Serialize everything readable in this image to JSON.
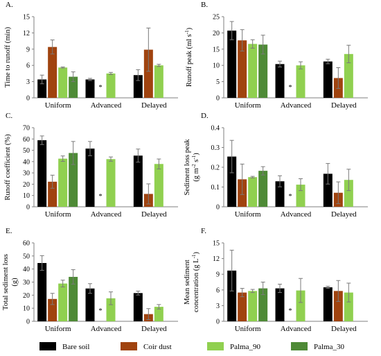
{
  "legend": [
    {
      "name": "Bare soil",
      "color": "#000000"
    },
    {
      "name": "Coir dust",
      "color": "#a0430f"
    },
    {
      "name": "Palma_90",
      "color": "#90d050"
    },
    {
      "name": "Palma_30",
      "color": "#4e8a36"
    }
  ],
  "chart_data": [
    {
      "panel": "A.",
      "type": "bar",
      "ylabel": [
        "Time to runoff (min)"
      ],
      "ylim": [
        0,
        15
      ],
      "yticks": [
        0,
        3,
        6,
        9,
        12,
        15
      ],
      "categories": [
        "Uniform",
        "Advanced",
        "Delayed"
      ],
      "series": [
        {
          "name": "Bare soil",
          "values": [
            3.4,
            3.4,
            4.2
          ],
          "errors": [
            0.8,
            0.2,
            1.0
          ]
        },
        {
          "name": "Coir dust",
          "values": [
            9.4,
            null,
            8.9
          ],
          "errors": [
            1.3,
            null,
            4.0
          ]
        },
        {
          "name": "Palma_90",
          "values": [
            5.6,
            4.5,
            6.0
          ],
          "errors": [
            0.1,
            0.2,
            0.2
          ]
        },
        {
          "name": "Palma_30",
          "values": [
            3.9,
            null,
            null
          ],
          "errors": [
            0.9,
            null,
            null
          ]
        }
      ],
      "missing_marker": {
        "category": "Advanced",
        "text": "*"
      }
    },
    {
      "panel": "B.",
      "type": "bar",
      "ylabel": [
        "Runoff peak (ml s",
        "-1",
        ")"
      ],
      "ylim": [
        0,
        25
      ],
      "yticks": [
        0,
        5,
        10,
        15,
        20,
        25
      ],
      "categories": [
        "Uniform",
        "Advanced",
        "Delayed"
      ],
      "series": [
        {
          "name": "Bare soil",
          "values": [
            20.7,
            10.4,
            11.2
          ],
          "errors": [
            2.8,
            0.9,
            0.7
          ]
        },
        {
          "name": "Coir dust",
          "values": [
            17.7,
            null,
            6.1
          ],
          "errors": [
            3.3,
            null,
            3.2
          ]
        },
        {
          "name": "Palma_90",
          "values": [
            16.6,
            10.0,
            13.5
          ],
          "errors": [
            1.3,
            1.1,
            2.7
          ]
        },
        {
          "name": "Palma_30",
          "values": [
            16.4,
            null,
            null
          ],
          "errors": [
            2.9,
            null,
            null
          ]
        }
      ],
      "missing_marker": {
        "category": "Advanced",
        "text": "*"
      }
    },
    {
      "panel": "C.",
      "type": "bar",
      "ylabel": [
        "Runoff coefficient (%)"
      ],
      "ylim": [
        0,
        70
      ],
      "yticks": [
        0,
        10,
        20,
        30,
        40,
        50,
        60,
        70
      ],
      "categories": [
        "Uniform",
        "Advanced",
        "Delayed"
      ],
      "series": [
        {
          "name": "Bare soil",
          "values": [
            58.9,
            51.5,
            45.3
          ],
          "errors": [
            3.8,
            6.3,
            5.8
          ]
        },
        {
          "name": "Coir dust",
          "values": [
            22.2,
            null,
            11.4
          ],
          "errors": [
            5.8,
            null,
            8.9
          ]
        },
        {
          "name": "Palma_90",
          "values": [
            42.6,
            42.2,
            37.9
          ],
          "errors": [
            2.4,
            1.9,
            4.4
          ]
        },
        {
          "name": "Palma_30",
          "values": [
            47.6,
            null,
            null
          ],
          "errors": [
            10.2,
            null,
            null
          ]
        }
      ],
      "missing_marker": {
        "category": "Advanced",
        "text": "*"
      }
    },
    {
      "panel": "D.",
      "type": "bar",
      "ylabel": [
        "Sediment loss peak",
        "(g m",
        "-2",
        " s",
        "-1",
        ")"
      ],
      "ylim": [
        0,
        0.4
      ],
      "yticks": [
        0,
        0.1,
        0.2,
        0.3,
        0.4
      ],
      "categories": [
        "Uniform",
        "Advanced",
        "Delayed"
      ],
      "series": [
        {
          "name": "Bare soil",
          "values": [
            0.254,
            0.129,
            0.167
          ],
          "errors": [
            0.082,
            0.028,
            0.052
          ]
        },
        {
          "name": "Coir dust",
          "values": [
            0.139,
            null,
            0.071
          ],
          "errors": [
            0.077,
            null,
            0.055
          ]
        },
        {
          "name": "Palma_90",
          "values": [
            0.15,
            0.112,
            0.136
          ],
          "errors": [
            0.004,
            0.03,
            0.054
          ]
        },
        {
          "name": "Palma_30",
          "values": [
            0.182,
            null,
            null
          ],
          "errors": [
            0.021,
            null,
            null
          ]
        }
      ],
      "missing_marker": {
        "category": "Advanced",
        "text": "*"
      }
    },
    {
      "panel": "E.",
      "type": "bar",
      "ylabel": [
        "Total sediment loss",
        "(g)"
      ],
      "ylim": [
        0,
        60
      ],
      "yticks": [
        0,
        10,
        20,
        30,
        40,
        50,
        60
      ],
      "categories": [
        "Uniform",
        "Advanced",
        "Delayed"
      ],
      "series": [
        {
          "name": "Bare soil",
          "values": [
            44.6,
            25.1,
            21.6
          ],
          "errors": [
            5.6,
            3.7,
            1.5
          ]
        },
        {
          "name": "Coir dust",
          "values": [
            17.1,
            null,
            5.5
          ],
          "errors": [
            4.3,
            null,
            4.2
          ]
        },
        {
          "name": "Palma_90",
          "values": [
            28.9,
            17.6,
            11.1
          ],
          "errors": [
            2.6,
            4.9,
            1.7
          ]
        },
        {
          "name": "Palma_30",
          "values": [
            34.0,
            null,
            null
          ],
          "errors": [
            5.5,
            null,
            null
          ]
        }
      ],
      "missing_marker": {
        "category": "Advanced",
        "text": "*"
      }
    },
    {
      "panel": "F.",
      "type": "bar",
      "ylabel": [
        "Mean sediment",
        "concentration (g L",
        "-1",
        ")"
      ],
      "ylim": [
        0,
        15
      ],
      "yticks": [
        0,
        3,
        6,
        9,
        12,
        15
      ],
      "categories": [
        "Uniform",
        "Advanced",
        "Delayed"
      ],
      "series": [
        {
          "name": "Bare soil",
          "values": [
            9.7,
            6.3,
            6.5
          ],
          "errors": [
            3.9,
            0.8,
            0.2
          ]
        },
        {
          "name": "Coir dust",
          "values": [
            5.5,
            null,
            5.8
          ],
          "errors": [
            0.8,
            null,
            2.0
          ]
        },
        {
          "name": "Palma_90",
          "values": [
            5.8,
            5.9,
            5.5
          ],
          "errors": [
            0.3,
            2.3,
            1.8
          ]
        },
        {
          "name": "Palma_30",
          "values": [
            6.3,
            null,
            null
          ],
          "errors": [
            1.2,
            null,
            null
          ]
        }
      ],
      "missing_marker": {
        "category": "Advanced",
        "text": "*"
      }
    }
  ]
}
